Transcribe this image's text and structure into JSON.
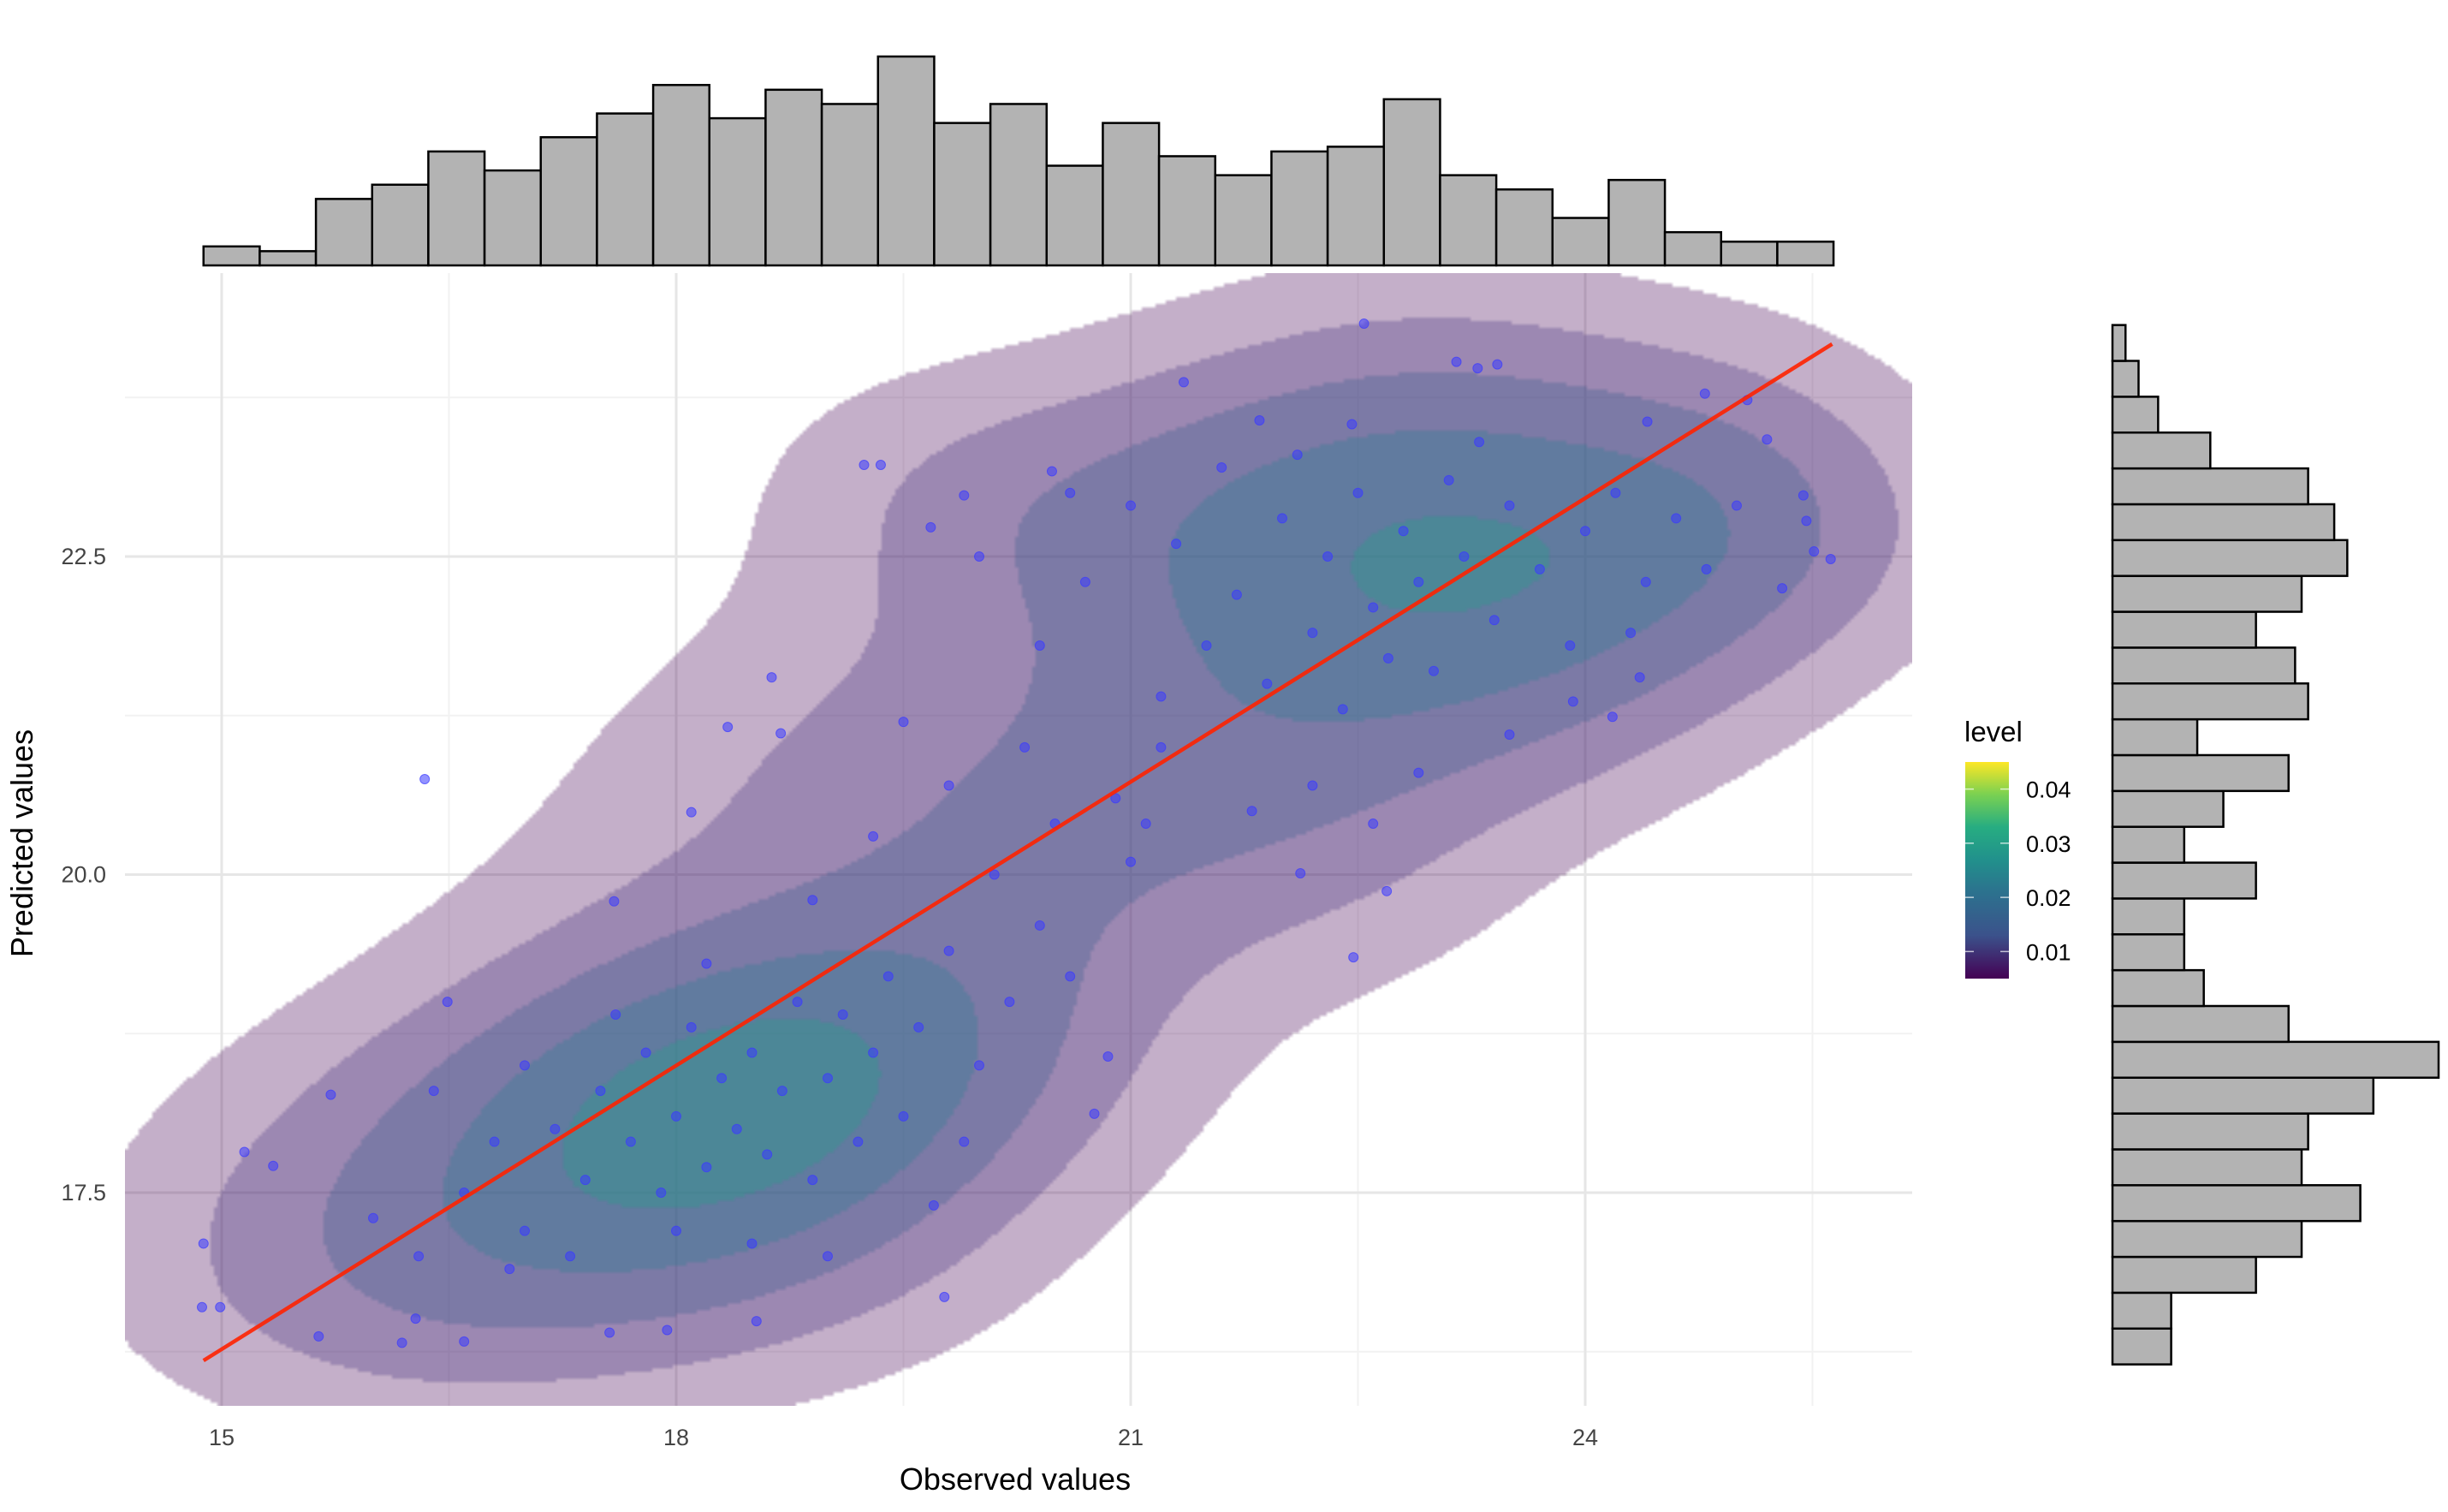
{
  "chart_data": {
    "type": "scatter",
    "xlabel": "Observed values",
    "ylabel": "Predicted values",
    "xlim": [
      14.36,
      26.16
    ],
    "ylim": [
      15.82,
      24.73
    ],
    "x_ticks": [
      15,
      18,
      21,
      24
    ],
    "x_tick_labels": [
      "15",
      "18",
      "21",
      "24"
    ],
    "y_ticks": [
      17.5,
      20.0,
      22.5
    ],
    "y_tick_labels": [
      "17.5",
      "20.0",
      "22.5"
    ],
    "grid": true,
    "point_color": "#3a3aff",
    "fit_line": {
      "color": "#ff2200",
      "x": [
        14.88,
        25.63
      ],
      "y": [
        16.18,
        24.17
      ]
    },
    "density_legend": {
      "title": "level",
      "position": "right",
      "range": [
        0.005,
        0.045
      ],
      "ticks": [
        0.01,
        0.02,
        0.03,
        0.04
      ],
      "tick_labels": [
        "0.01",
        "0.02",
        "0.03",
        "0.04"
      ],
      "levels": [
        0.005,
        0.01,
        0.015,
        0.02,
        0.025,
        0.03,
        0.035,
        0.04
      ],
      "level_colors": [
        "#440154",
        "#46337e",
        "#365c8d",
        "#277f8e",
        "#1fa187",
        "#4ac16d",
        "#a0da39",
        "#fde725"
      ]
    },
    "points": [
      [
        14.88,
        17.1
      ],
      [
        14.87,
        16.6
      ],
      [
        14.99,
        16.6
      ],
      [
        15.15,
        17.82
      ],
      [
        15.64,
        16.37
      ],
      [
        16.34,
        20.75
      ],
      [
        15.34,
        17.71
      ],
      [
        15.72,
        18.27
      ],
      [
        16.49,
        19.0
      ],
      [
        17.59,
        19.79
      ],
      [
        18.1,
        20.49
      ],
      [
        18.34,
        21.16
      ],
      [
        18.63,
        21.55
      ],
      [
        18.69,
        21.11
      ],
      [
        19.24,
        23.22
      ],
      [
        19.35,
        23.22
      ],
      [
        19.68,
        22.73
      ],
      [
        19.9,
        22.98
      ],
      [
        20.48,
        23.17
      ],
      [
        21.35,
        23.87
      ],
      [
        22.54,
        24.33
      ],
      [
        23.15,
        24.03
      ],
      [
        23.29,
        23.98
      ],
      [
        23.42,
        24.01
      ],
      [
        21.85,
        23.57
      ],
      [
        22.46,
        23.54
      ],
      [
        24.41,
        23.56
      ],
      [
        24.79,
        23.78
      ],
      [
        25.07,
        23.73
      ],
      [
        25.2,
        23.42
      ],
      [
        25.44,
        22.98
      ],
      [
        25.46,
        22.78
      ],
      [
        25.51,
        22.54
      ],
      [
        25.62,
        22.48
      ],
      [
        25.3,
        22.25
      ],
      [
        24.36,
        21.55
      ],
      [
        24.18,
        21.24
      ],
      [
        23.92,
        21.36
      ],
      [
        22.69,
        19.87
      ],
      [
        22.12,
        20.01
      ],
      [
        22.47,
        19.35
      ],
      [
        20.85,
        18.57
      ],
      [
        20.76,
        18.12
      ],
      [
        19.77,
        16.68
      ],
      [
        18.53,
        16.49
      ],
      [
        17.56,
        16.4
      ],
      [
        17.94,
        16.42
      ],
      [
        16.19,
        16.32
      ],
      [
        16.6,
        16.33
      ],
      [
        16.28,
        16.51
      ],
      [
        16.0,
        17.3
      ],
      [
        16.3,
        17.0
      ],
      [
        16.6,
        17.5
      ],
      [
        16.8,
        17.9
      ],
      [
        17.0,
        17.2
      ],
      [
        17.2,
        18.0
      ],
      [
        17.4,
        17.6
      ],
      [
        17.5,
        18.3
      ],
      [
        17.7,
        17.9
      ],
      [
        17.8,
        18.6
      ],
      [
        17.9,
        17.5
      ],
      [
        18.0,
        18.1
      ],
      [
        18.1,
        18.8
      ],
      [
        18.2,
        17.7
      ],
      [
        18.3,
        18.4
      ],
      [
        18.4,
        18.0
      ],
      [
        18.5,
        18.6
      ],
      [
        18.6,
        17.8
      ],
      [
        18.7,
        18.3
      ],
      [
        18.8,
        19.0
      ],
      [
        18.9,
        17.6
      ],
      [
        19.0,
        18.4
      ],
      [
        19.1,
        18.9
      ],
      [
        19.2,
        17.9
      ],
      [
        19.3,
        18.6
      ],
      [
        19.4,
        19.2
      ],
      [
        19.5,
        18.1
      ],
      [
        19.6,
        18.8
      ],
      [
        19.7,
        17.4
      ],
      [
        19.8,
        19.4
      ],
      [
        20.0,
        18.5
      ],
      [
        20.2,
        19.0
      ],
      [
        16.9,
        16.9
      ],
      [
        17.3,
        17.0
      ],
      [
        18.0,
        17.2
      ],
      [
        18.5,
        17.1
      ],
      [
        19.0,
        17.0
      ],
      [
        17.6,
        18.9
      ],
      [
        18.2,
        19.3
      ],
      [
        17.0,
        18.5
      ],
      [
        16.4,
        18.3
      ],
      [
        19.9,
        17.9
      ],
      [
        20.4,
        19.6
      ],
      [
        18.9,
        19.8
      ],
      [
        19.3,
        20.3
      ],
      [
        19.8,
        20.7
      ],
      [
        20.1,
        20.0
      ],
      [
        20.5,
        20.4
      ],
      [
        20.3,
        21.0
      ],
      [
        19.5,
        21.2
      ],
      [
        20.9,
        20.6
      ],
      [
        21.2,
        21.0
      ],
      [
        21.0,
        20.1
      ],
      [
        20.6,
        19.2
      ],
      [
        21.2,
        21.4
      ],
      [
        21.5,
        21.8
      ],
      [
        21.3,
        22.6
      ],
      [
        21.7,
        22.2
      ],
      [
        21.9,
        21.5
      ],
      [
        22.0,
        22.8
      ],
      [
        22.2,
        21.9
      ],
      [
        22.3,
        22.5
      ],
      [
        22.4,
        21.3
      ],
      [
        22.5,
        23.0
      ],
      [
        22.6,
        22.1
      ],
      [
        22.7,
        21.7
      ],
      [
        22.8,
        22.7
      ],
      [
        22.9,
        22.3
      ],
      [
        23.0,
        21.6
      ],
      [
        23.1,
        23.1
      ],
      [
        23.2,
        22.5
      ],
      [
        23.4,
        22.0
      ],
      [
        23.5,
        22.9
      ],
      [
        23.7,
        22.4
      ],
      [
        23.9,
        21.8
      ],
      [
        24.0,
        22.7
      ],
      [
        24.2,
        23.0
      ],
      [
        24.4,
        22.3
      ],
      [
        24.6,
        22.8
      ],
      [
        24.8,
        22.4
      ],
      [
        25.0,
        22.9
      ],
      [
        21.0,
        22.9
      ],
      [
        20.7,
        22.3
      ],
      [
        20.4,
        21.8
      ],
      [
        21.6,
        23.2
      ],
      [
        22.1,
        23.3
      ],
      [
        23.3,
        23.4
      ],
      [
        22.9,
        20.8
      ],
      [
        23.5,
        21.1
      ],
      [
        22.2,
        20.7
      ],
      [
        21.8,
        20.5
      ],
      [
        24.3,
        21.9
      ],
      [
        20.0,
        22.5
      ],
      [
        20.6,
        23.0
      ],
      [
        21.1,
        20.4
      ],
      [
        22.6,
        20.4
      ]
    ],
    "top_histogram": {
      "variable": "Observed values",
      "bin_start": 14.88,
      "bin_width": 0.371,
      "counts": [
        4,
        3,
        14,
        17,
        24,
        20,
        27,
        32,
        38,
        31,
        37,
        34,
        44,
        30,
        34,
        21,
        30,
        23,
        19,
        24,
        25,
        35,
        19,
        16,
        10,
        18,
        7,
        5,
        5
      ],
      "fill": "#b3b3b3"
    },
    "right_histogram": {
      "variable": "Predicted values",
      "bin_start": 16.15,
      "bin_width": 0.2817,
      "counts": [
        9,
        9,
        22,
        29,
        38,
        29,
        30,
        40,
        50,
        27,
        14,
        11,
        11,
        22,
        11,
        17,
        27,
        13,
        30,
        28,
        22,
        29,
        36,
        34,
        30,
        15,
        7,
        4,
        2
      ],
      "fill": "#b3b3b3"
    }
  }
}
